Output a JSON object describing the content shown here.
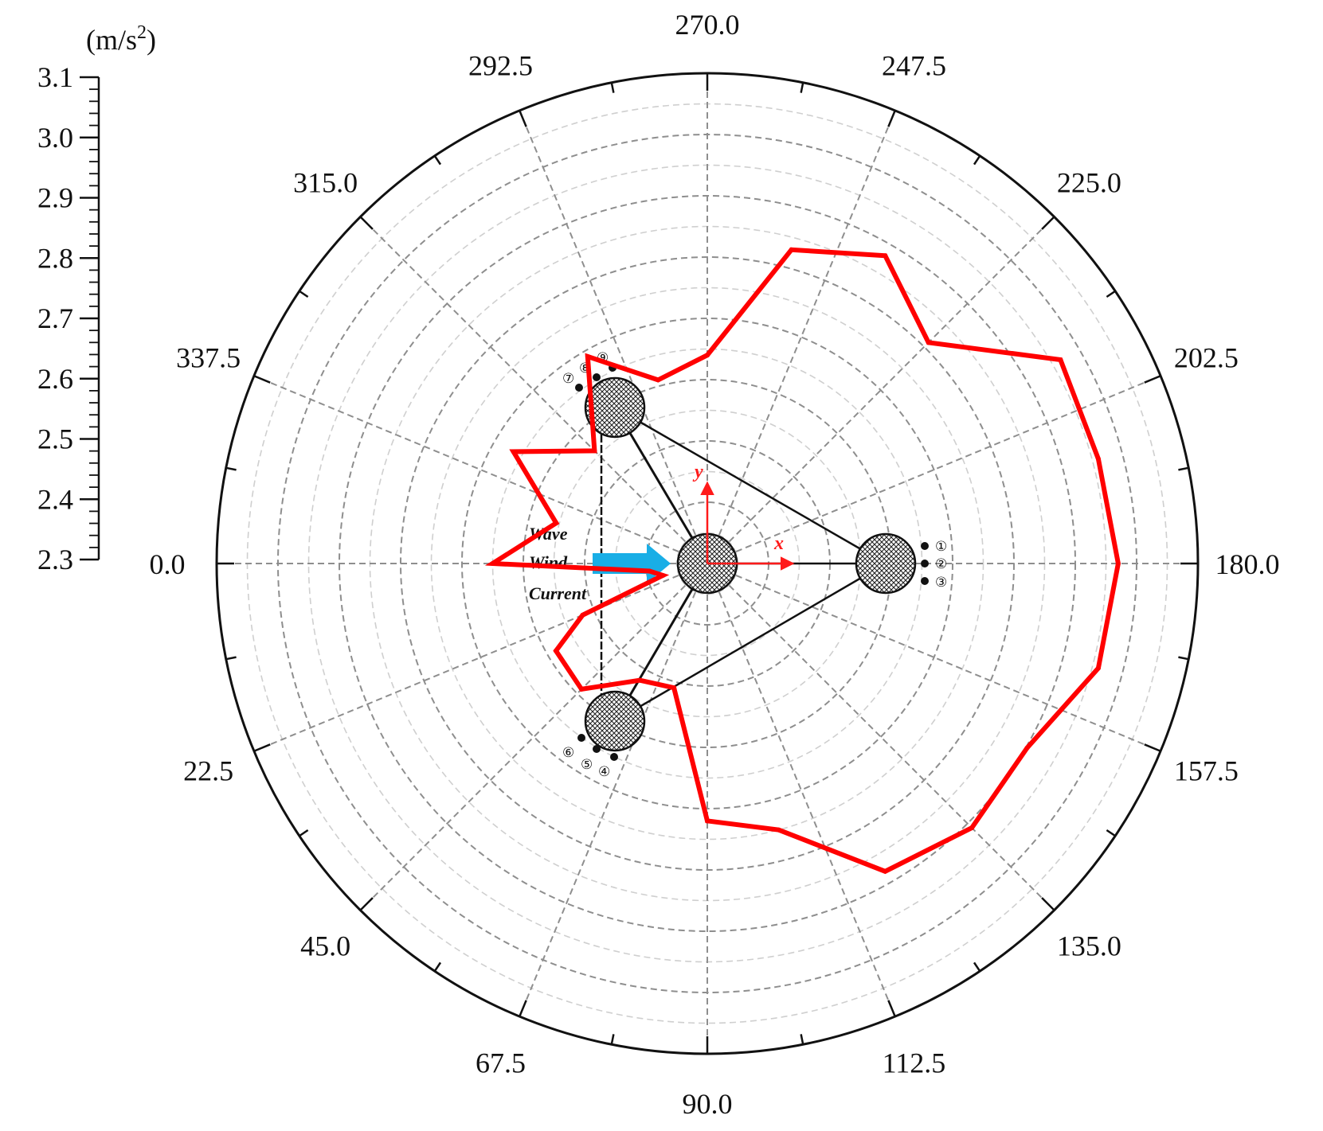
{
  "chart_data": {
    "type": "polar-line",
    "unit_label": "(m/s",
    "unit_sup": "2",
    "unit_close": ")",
    "r_axis": {
      "min": 2.3,
      "max": 3.1,
      "ticks": [
        "2.3",
        "2.4",
        "2.5",
        "2.6",
        "2.7",
        "2.8",
        "2.9",
        "3.0",
        "3.1"
      ]
    },
    "angle_labels": [
      "0.0",
      "22.5",
      "45.0",
      "67.5",
      "90.0",
      "112.5",
      "135.0",
      "157.5",
      "180.0",
      "202.5",
      "225.0",
      "247.5",
      "270.0",
      "292.5",
      "315.0",
      "337.5"
    ],
    "angles": [
      0.0,
      22.5,
      45.0,
      67.5,
      90.0,
      112.5,
      135.0,
      157.5,
      180.0,
      202.5,
      225.0,
      247.5,
      270.0,
      292.5,
      315.0,
      337.5
    ],
    "series": [
      {
        "color": "#ff0000",
        "points": [
          {
            "angle": 0.0,
            "value": 2.65
          },
          {
            "angle": 7.5,
            "value": 2.395
          },
          {
            "angle": 15.0,
            "value": 2.375
          },
          {
            "angle": 22.5,
            "value": 2.52
          },
          {
            "angle": 30.0,
            "value": 2.585
          },
          {
            "angle": 45.0,
            "value": 2.59
          },
          {
            "angle": 60.0,
            "value": 2.52
          },
          {
            "angle": 75.0,
            "value": 2.51
          },
          {
            "angle": 90.0,
            "value": 2.72
          },
          {
            "angle": 105.0,
            "value": 2.75
          },
          {
            "angle": 120.0,
            "value": 2.88
          },
          {
            "angle": 135.0,
            "value": 2.91
          },
          {
            "angle": 150.0,
            "value": 2.902
          },
          {
            "angle": 165.0,
            "value": 2.96
          },
          {
            "angle": 180.0,
            "value": 2.97
          },
          {
            "angle": 195.0,
            "value": 2.96
          },
          {
            "angle": 210.0,
            "value": 2.965
          },
          {
            "angle": 225.0,
            "value": 2.81
          },
          {
            "angle": 240.0,
            "value": 2.88
          },
          {
            "angle": 255.0,
            "value": 2.83
          },
          {
            "angle": 270.0,
            "value": 2.64
          },
          {
            "angle": 285.0,
            "value": 2.61
          },
          {
            "angle": 300.0,
            "value": 2.69
          },
          {
            "angle": 315.0,
            "value": 2.56
          },
          {
            "angle": 330.0,
            "value": 2.665
          },
          {
            "angle": 345.0,
            "value": 2.555
          }
        ]
      }
    ],
    "grid": true,
    "inset": {
      "flow_labels": [
        "Wave",
        "Wind",
        "Current"
      ],
      "axis_labels": {
        "x": "x",
        "y": "y"
      },
      "sensor_labels": [
        "①",
        "②",
        "③",
        "④",
        "⑤",
        "⑥",
        "⑦",
        "⑧",
        "⑨"
      ],
      "arrow_color": "#19aee6",
      "axis_color": "#ff1a1a"
    }
  }
}
